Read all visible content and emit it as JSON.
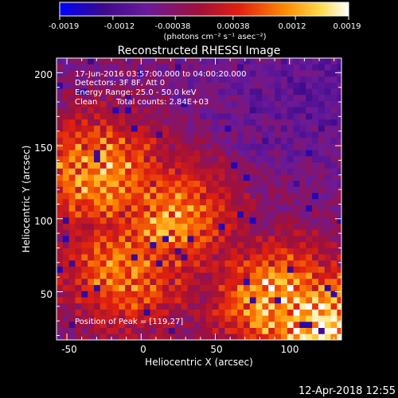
{
  "colors": {
    "background": "#000000",
    "colormap": [
      "#0000ff",
      "#3b0a8c",
      "#6a1a9a",
      "#a0103a",
      "#e0200f",
      "#ff8a00",
      "#ffd84a",
      "#ffffff"
    ]
  },
  "colorbar": {
    "tick_labels": [
      "-0.0019",
      "-0.0012",
      "-0.00038",
      "0.00038",
      "0.0012",
      "0.0019"
    ],
    "tick_values": [
      -0.0019,
      -0.0012,
      -0.00038,
      0.00038,
      0.0012,
      0.0019
    ],
    "unit_label": "(photons cm⁻² s⁻¹ asec⁻²)",
    "range": [
      -0.0019,
      0.0019
    ]
  },
  "chart_data": {
    "type": "heatmap",
    "title": "Reconstructed RHESSI Image",
    "xlabel": "Heliocentric X (arcsec)",
    "ylabel": "Heliocentric Y (arcsec)",
    "xlim": [
      -57,
      135
    ],
    "ylim": [
      17,
      210
    ],
    "xticks": [
      -50,
      0,
      50,
      100
    ],
    "yticks": [
      50,
      100,
      150,
      200
    ],
    "grid": false,
    "annotations": {
      "time_range": "17-Jun-2016 03:57:00.000 to 04:00:20.000",
      "detectors": "Detectors: 3F 8F, Att 0",
      "energy": "Energy Range: 25.0 - 50.0 keV",
      "method": "Clean",
      "counts": "Total counts: 2.84E+03",
      "peak": "Position of Peak = [119,27]"
    },
    "peak_position": [
      119,
      27
    ],
    "bright_regions": [
      {
        "x": 119,
        "y": 27,
        "level": 1.0
      },
      {
        "x": 92,
        "y": 45,
        "level": 0.85
      },
      {
        "x": -28,
        "y": 130,
        "level": 0.8
      },
      {
        "x": 20,
        "y": 100,
        "level": 0.75
      },
      {
        "x": -10,
        "y": 65,
        "level": 0.7
      }
    ]
  },
  "footer": {
    "timestamp": "12-Apr-2018 12:55"
  }
}
